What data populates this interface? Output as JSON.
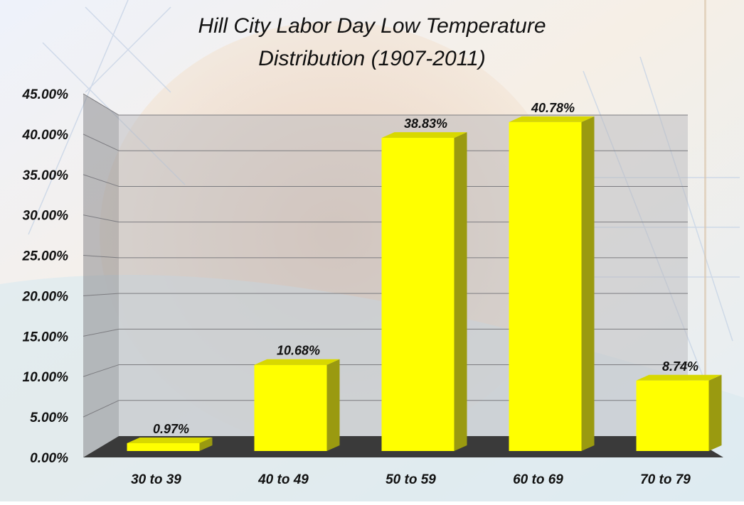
{
  "chart_data": {
    "type": "bar",
    "title_lines": [
      "Hill City Labor Day Low Temperature",
      "Distribution (1907-2011)"
    ],
    "categories": [
      "30 to 39",
      "40 to 49",
      "50 to 59",
      "60 to 69",
      "70 to 79"
    ],
    "values": [
      0.97,
      10.68,
      38.83,
      40.78,
      8.74
    ],
    "value_labels": [
      "0.97%",
      "10.68%",
      "38.83%",
      "40.78%",
      "8.74%"
    ],
    "yticks": [
      "0.00%",
      "5.00%",
      "10.00%",
      "15.00%",
      "20.00%",
      "25.00%",
      "30.00%",
      "35.00%",
      "40.00%",
      "45.00%"
    ],
    "ylim": [
      0,
      45
    ],
    "grid": true,
    "legend": "none",
    "style": "3d-column",
    "colors": {
      "bar_front": "#ffff00",
      "bar_side": "#9a9a10",
      "bar_top": "#d8d800",
      "floor": "#3a3a3a",
      "back_wall": "#b9b9bd",
      "side_wall": "#8c8c90"
    }
  }
}
